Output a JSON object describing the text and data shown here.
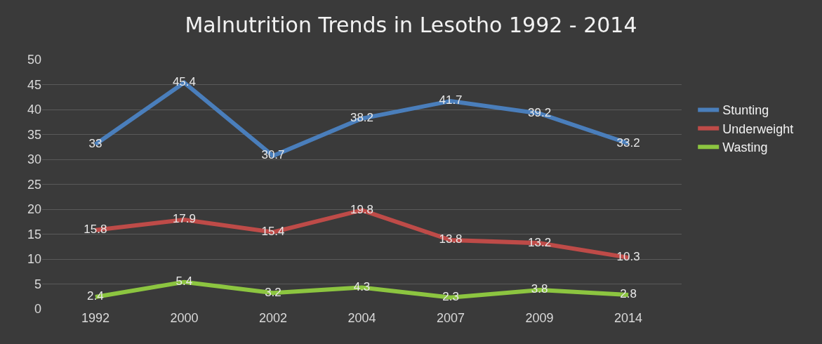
{
  "chart_data": {
    "type": "line",
    "title": "Malnutrition Trends in Lesotho 1992 - 2014",
    "categories": [
      "1992",
      "2000",
      "2002",
      "2004",
      "2007",
      "2009",
      "2014"
    ],
    "series": [
      {
        "name": "Stunting",
        "color": "#4a7ebb",
        "values": [
          33,
          45.4,
          30.7,
          38.2,
          41.7,
          39.2,
          33.2
        ]
      },
      {
        "name": "Underweight",
        "color": "#be4b48",
        "values": [
          15.8,
          17.9,
          15.4,
          19.8,
          13.8,
          13.2,
          10.3
        ]
      },
      {
        "name": "Wasting",
        "color": "#8cc540",
        "values": [
          2.4,
          5.4,
          3.2,
          4.3,
          2.3,
          3.8,
          2.8
        ]
      }
    ],
    "ylim": [
      0,
      50
    ],
    "yticks": [
      0,
      5,
      10,
      15,
      20,
      25,
      30,
      35,
      40,
      45,
      50
    ],
    "grid": "y",
    "legend": "right",
    "data_labels": true,
    "marker": "none",
    "line_style": "solid"
  }
}
